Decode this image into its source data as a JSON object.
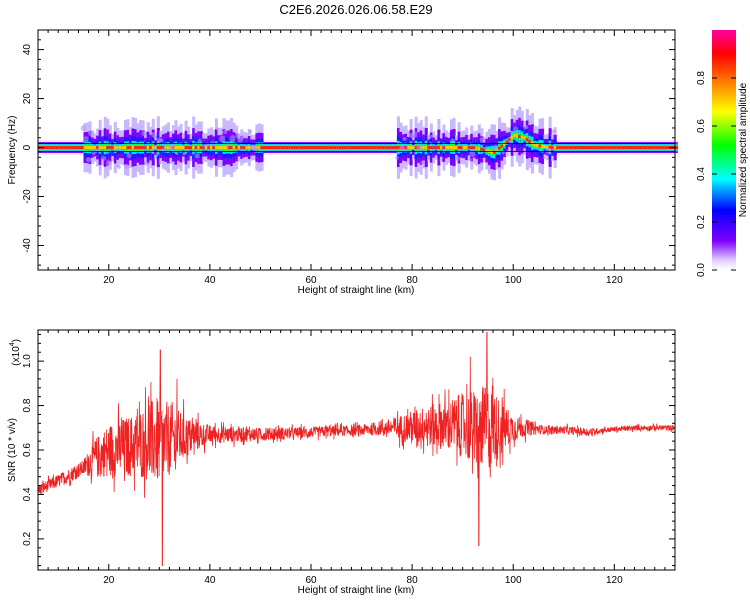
{
  "figure": {
    "title": "C2E6.2026.026.06.58.E29"
  },
  "chart_data": [
    {
      "type": "heatmap",
      "xlabel": "Height of straight line (km)",
      "ylabel": "Frequency (Hz)",
      "xlim": [
        6,
        132
      ],
      "ylim": [
        -50,
        48
      ],
      "xticks": [
        20,
        40,
        60,
        80,
        100,
        120
      ],
      "yticks": [
        -40,
        -20,
        0,
        20,
        40
      ],
      "grid": false,
      "colorbar": {
        "label": "Normalized spectral amplitude",
        "range": [
          0,
          1
        ],
        "ticks": [
          "0.0",
          "0.2",
          "0.4",
          "0.6",
          "0.8"
        ],
        "colormap": [
          "#ffffff",
          "#e8ddff",
          "#7a00ff",
          "#0000ff",
          "#00ffff",
          "#00ff00",
          "#ffff00",
          "#ff7f00",
          "#ff0000",
          "#ff00a0"
        ]
      },
      "ridge": {
        "description_values": "centre frequency (Hz) vs height (km)",
        "x": [
          6,
          15,
          40,
          60,
          78,
          92,
          96,
          100,
          102,
          104,
          107,
          132
        ],
        "y": [
          0,
          0,
          0,
          0,
          0,
          0,
          -2,
          5,
          4,
          1,
          0,
          0
        ]
      },
      "activity_bands_km": [
        [
          15,
          50
        ],
        [
          77,
          108
        ]
      ]
    },
    {
      "type": "line",
      "xlabel": "Height of straight line (km)",
      "ylabel": "SNR (10 * v/v)",
      "yscale_label": "(x10",
      "yscale_exp": "4",
      "xlim": [
        6,
        132
      ],
      "ylim": [
        0.06,
        1.14
      ],
      "xticks": [
        20,
        40,
        60,
        80,
        100,
        120
      ],
      "yticks": [
        "0.2",
        "0.4",
        "0.6",
        "0.8",
        "1.0"
      ],
      "line_color": "#ee2222",
      "envelope": {
        "x": [
          6,
          10,
          15,
          17,
          20,
          25,
          28,
          30,
          33,
          36,
          40,
          50,
          60,
          70,
          75,
          78,
          82,
          86,
          90,
          93,
          95,
          97,
          100,
          103,
          106,
          110,
          115,
          118,
          125,
          132
        ],
        "mean": [
          0.42,
          0.46,
          0.52,
          0.56,
          0.6,
          0.62,
          0.64,
          0.64,
          0.65,
          0.66,
          0.67,
          0.67,
          0.68,
          0.69,
          0.7,
          0.7,
          0.71,
          0.71,
          0.71,
          0.7,
          0.7,
          0.7,
          0.7,
          0.7,
          0.69,
          0.69,
          0.68,
          0.69,
          0.7,
          0.7
        ],
        "amp": [
          0.04,
          0.05,
          0.06,
          0.14,
          0.2,
          0.24,
          0.3,
          0.34,
          0.24,
          0.14,
          0.07,
          0.05,
          0.04,
          0.04,
          0.06,
          0.1,
          0.14,
          0.18,
          0.24,
          0.3,
          0.32,
          0.24,
          0.1,
          0.06,
          0.03,
          0.03,
          0.03,
          0.02,
          0.02,
          0.02
        ]
      },
      "peaks": [
        {
          "x": 30.2,
          "y": 1.05
        },
        {
          "x": 30.6,
          "y": 0.08
        },
        {
          "x": 94.8,
          "y": 1.13
        },
        {
          "x": 93.2,
          "y": 0.17
        },
        {
          "x": 33.5,
          "y": 0.92
        },
        {
          "x": 91.5,
          "y": 1.02
        }
      ]
    }
  ]
}
